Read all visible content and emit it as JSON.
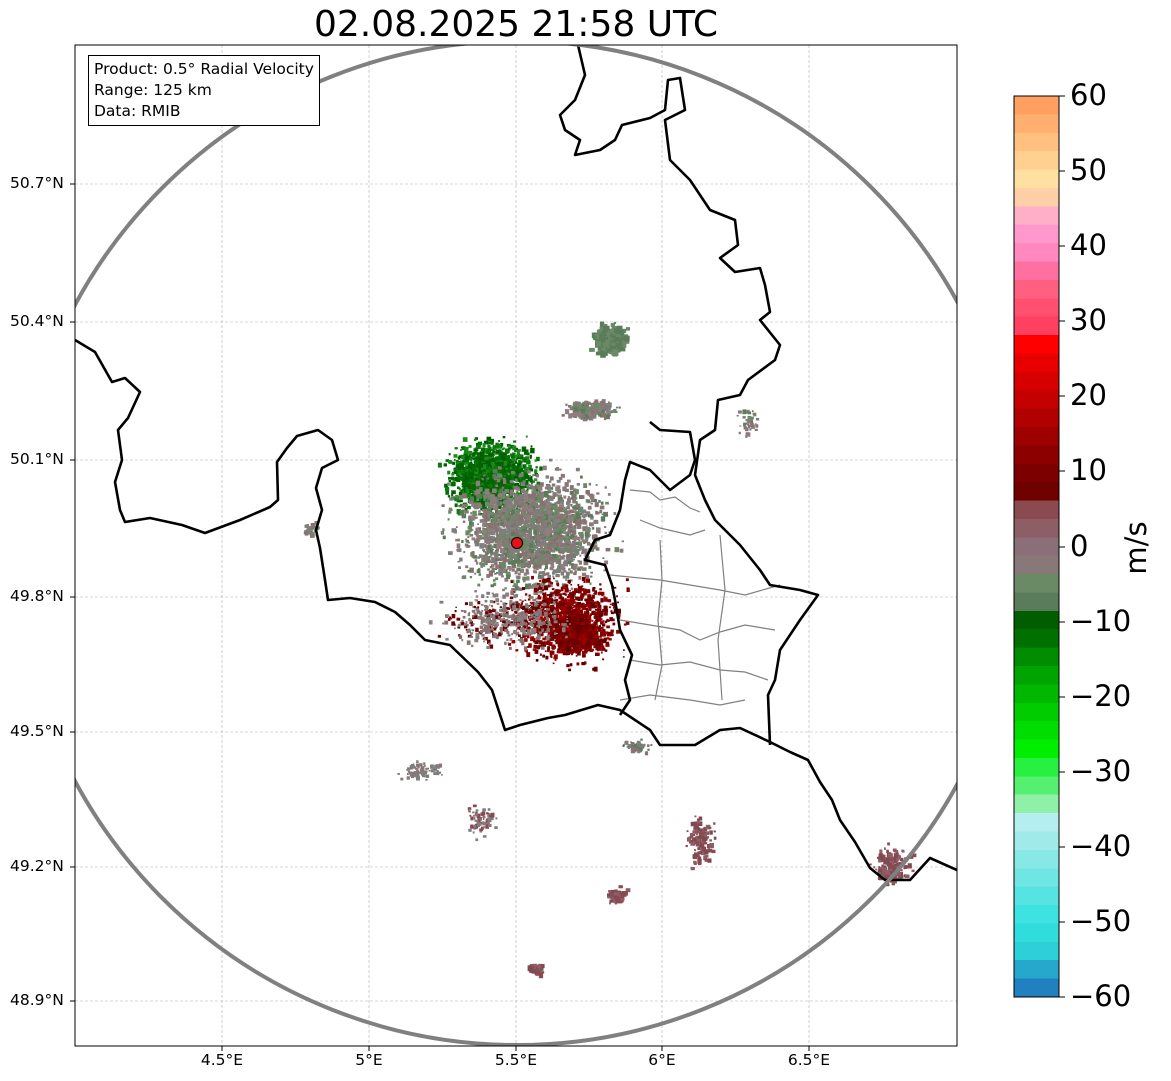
{
  "title": "02.08.2025 21:58 UTC",
  "info_box": {
    "product": "Product: 0.5° Radial Velocity",
    "range": "Range: 125 km",
    "data": "Data: RMIB"
  },
  "axes": {
    "lon_ticks": [
      "4.5°E",
      "5°E",
      "5.5°E",
      "6°E",
      "6.5°E"
    ],
    "lat_ticks": [
      "50.7°N",
      "50.4°N",
      "50.1°N",
      "49.8°N",
      "49.5°N",
      "49.2°N",
      "48.9°N"
    ],
    "grid": true
  },
  "radar_site": {
    "lon": 5.5,
    "lat": 49.91,
    "color": "#e8101a"
  },
  "range_ring_color": "#808080",
  "colorbar": {
    "label": "m/s",
    "ticks": [
      "60",
      "50",
      "40",
      "30",
      "20",
      "10",
      "0",
      "−10",
      "−20",
      "−30",
      "−40",
      "−50",
      "−60"
    ],
    "min": -60,
    "max": 60,
    "colors": [
      "#2080c0",
      "#25a8cc",
      "#2cd0d6",
      "#30dcdc",
      "#3ee2e0",
      "#55e4e2",
      "#70e6e4",
      "#88e8e6",
      "#a0eaea",
      "#b4eeee",
      "#8ff0a8",
      "#55f070",
      "#28f040",
      "#00ee00",
      "#00dd00",
      "#00cc00",
      "#00b800",
      "#00a400",
      "#008c00",
      "#007000",
      "#005e00",
      "#5a7c5a",
      "#6a8a66",
      "#887878",
      "#8a6e78",
      "#8e5e66",
      "#8a4a50",
      "#6e0000",
      "#7c0000",
      "#8c0000",
      "#9e0000",
      "#b00000",
      "#c40000",
      "#d60000",
      "#e80000",
      "#ff0000",
      "#ff4060",
      "#ff5070",
      "#ff6080",
      "#ff70a0",
      "#ff88c0",
      "#ff98cc",
      "#ffb0c8",
      "#ffd0a8",
      "#ffe0a0",
      "#ffd090",
      "#ffc080",
      "#ffb070",
      "#ffa060"
    ]
  }
}
